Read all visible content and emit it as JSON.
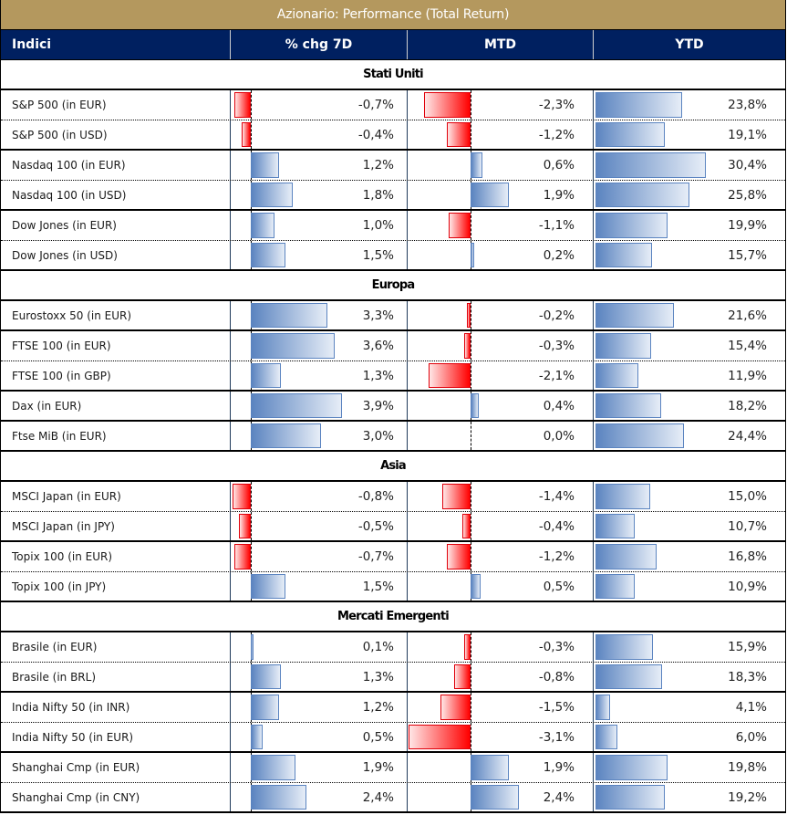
{
  "title": "Azionario: Performance (Total Return)",
  "colors": {
    "title_bg": "#B4985E",
    "header_bg": "#002060",
    "positive_bar": "#5B84C0",
    "negative_bar": "#FF0000"
  },
  "header": {
    "col_index": "Indici",
    "col_7d": "% chg 7D",
    "col_mtd": "MTD",
    "col_ytd": "YTD"
  },
  "sections": [
    {
      "name": "Stati Uniti",
      "rows": [
        {
          "index": "S&P 500 (in EUR)",
          "chg7d": -0.7,
          "chg7d_label": "-0,7%",
          "mtd": -2.3,
          "mtd_label": "-2,3%",
          "ytd": 23.8,
          "ytd_label": "23,8%"
        },
        {
          "index": "S&P 500 (in USD)",
          "chg7d": -0.4,
          "chg7d_label": "-0,4%",
          "mtd": -1.2,
          "mtd_label": "-1,2%",
          "ytd": 19.1,
          "ytd_label": "19,1%"
        },
        {
          "index": "Nasdaq 100 (in EUR)",
          "chg7d": 1.2,
          "chg7d_label": "1,2%",
          "mtd": 0.6,
          "mtd_label": "0,6%",
          "ytd": 30.4,
          "ytd_label": "30,4%"
        },
        {
          "index": "Nasdaq 100 (in USD)",
          "chg7d": 1.8,
          "chg7d_label": "1,8%",
          "mtd": 1.9,
          "mtd_label": "1,9%",
          "ytd": 25.8,
          "ytd_label": "25,8%"
        },
        {
          "index": "Dow Jones (in EUR)",
          "chg7d": 1.0,
          "chg7d_label": "1,0%",
          "mtd": -1.1,
          "mtd_label": "-1,1%",
          "ytd": 19.9,
          "ytd_label": "19,9%"
        },
        {
          "index": "Dow Jones (in USD)",
          "chg7d": 1.5,
          "chg7d_label": "1,5%",
          "mtd": 0.2,
          "mtd_label": "0,2%",
          "ytd": 15.7,
          "ytd_label": "15,7%"
        }
      ]
    },
    {
      "name": "Europa",
      "rows": [
        {
          "index": "Eurostoxx 50 (in EUR)",
          "chg7d": 3.3,
          "chg7d_label": "3,3%",
          "mtd": -0.2,
          "mtd_label": "-0,2%",
          "ytd": 21.6,
          "ytd_label": "21,6%"
        },
        {
          "index": "FTSE 100 (in EUR)",
          "chg7d": 3.6,
          "chg7d_label": "3,6%",
          "mtd": -0.3,
          "mtd_label": "-0,3%",
          "ytd": 15.4,
          "ytd_label": "15,4%"
        },
        {
          "index": "FTSE 100 (in GBP)",
          "chg7d": 1.3,
          "chg7d_label": "1,3%",
          "mtd": -2.1,
          "mtd_label": "-2,1%",
          "ytd": 11.9,
          "ytd_label": "11,9%"
        },
        {
          "index": "Dax (in EUR)",
          "chg7d": 3.9,
          "chg7d_label": "3,9%",
          "mtd": 0.4,
          "mtd_label": "0,4%",
          "ytd": 18.2,
          "ytd_label": "18,2%"
        },
        {
          "index": "Ftse MiB (in EUR)",
          "chg7d": 3.0,
          "chg7d_label": "3,0%",
          "mtd": 0.0,
          "mtd_label": "0,0%",
          "ytd": 24.4,
          "ytd_label": "24,4%"
        }
      ]
    },
    {
      "name": "Asia",
      "rows": [
        {
          "index": "MSCI Japan (in EUR)",
          "chg7d": -0.8,
          "chg7d_label": "-0,8%",
          "mtd": -1.4,
          "mtd_label": "-1,4%",
          "ytd": 15.0,
          "ytd_label": "15,0%"
        },
        {
          "index": "MSCI Japan (in JPY)",
          "chg7d": -0.5,
          "chg7d_label": "-0,5%",
          "mtd": -0.4,
          "mtd_label": "-0,4%",
          "ytd": 10.7,
          "ytd_label": "10,7%"
        },
        {
          "index": "Topix 100 (in EUR)",
          "chg7d": -0.7,
          "chg7d_label": "-0,7%",
          "mtd": -1.2,
          "mtd_label": "-1,2%",
          "ytd": 16.8,
          "ytd_label": "16,8%"
        },
        {
          "index": "Topix 100 (in JPY)",
          "chg7d": 1.5,
          "chg7d_label": "1,5%",
          "mtd": 0.5,
          "mtd_label": "0,5%",
          "ytd": 10.9,
          "ytd_label": "10,9%"
        }
      ]
    },
    {
      "name": "Mercati Emergenti",
      "rows": [
        {
          "index": "Brasile (in EUR)",
          "chg7d": 0.1,
          "chg7d_label": "0,1%",
          "mtd": -0.3,
          "mtd_label": "-0,3%",
          "ytd": 15.9,
          "ytd_label": "15,9%"
        },
        {
          "index": "Brasile (in BRL)",
          "chg7d": 1.3,
          "chg7d_label": "1,3%",
          "mtd": -0.8,
          "mtd_label": "-0,8%",
          "ytd": 18.3,
          "ytd_label": "18,3%"
        },
        {
          "index": "India Nifty 50 (in INR)",
          "chg7d": 1.2,
          "chg7d_label": "1,2%",
          "mtd": -1.5,
          "mtd_label": "-1,5%",
          "ytd": 4.1,
          "ytd_label": "4,1%"
        },
        {
          "index": "India Nifty 50 (in EUR)",
          "chg7d": 0.5,
          "chg7d_label": "0,5%",
          "mtd": -3.1,
          "mtd_label": "-3,1%",
          "ytd": 6.0,
          "ytd_label": "6,0%"
        },
        {
          "index": "Shanghai Cmp (in EUR)",
          "chg7d": 1.9,
          "chg7d_label": "1,9%",
          "mtd": 1.9,
          "mtd_label": "1,9%",
          "ytd": 19.8,
          "ytd_label": "19,8%"
        },
        {
          "index": "Shanghai Cmp (in CNY)",
          "chg7d": 2.4,
          "chg7d_label": "2,4%",
          "mtd": 2.4,
          "mtd_label": "2,4%",
          "ytd": 19.2,
          "ytd_label": "19,2%"
        }
      ]
    }
  ]
}
